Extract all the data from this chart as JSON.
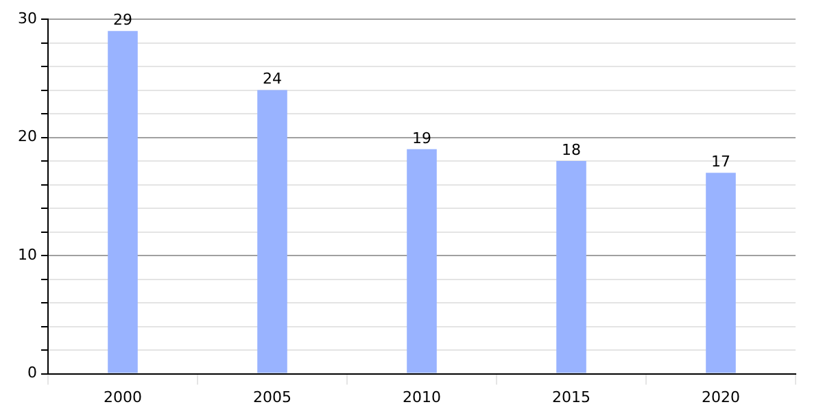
{
  "chart_data": {
    "type": "bar",
    "categories": [
      "2000",
      "2005",
      "2010",
      "2015",
      "2020"
    ],
    "values": [
      29,
      24,
      19,
      18,
      17
    ],
    "color": "#99b3ff",
    "ylim": [
      0,
      30
    ],
    "yticks": [
      0,
      {
        "value": 2,
        "label": null
      },
      {
        "value": 4,
        "label": null
      },
      {
        "value": 6,
        "label": null
      },
      {
        "value": 8,
        "label": null
      },
      10,
      {
        "value": 12,
        "label": null
      },
      {
        "value": 14,
        "label": null
      },
      {
        "value": 16,
        "label": null
      },
      {
        "value": 18,
        "label": null
      },
      20,
      {
        "value": 22,
        "label": null
      },
      {
        "value": 24,
        "label": null
      },
      {
        "value": 26,
        "label": null
      },
      {
        "value": 28,
        "label": null
      },
      30
    ],
    "grid": true,
    "data_labels": true
  }
}
